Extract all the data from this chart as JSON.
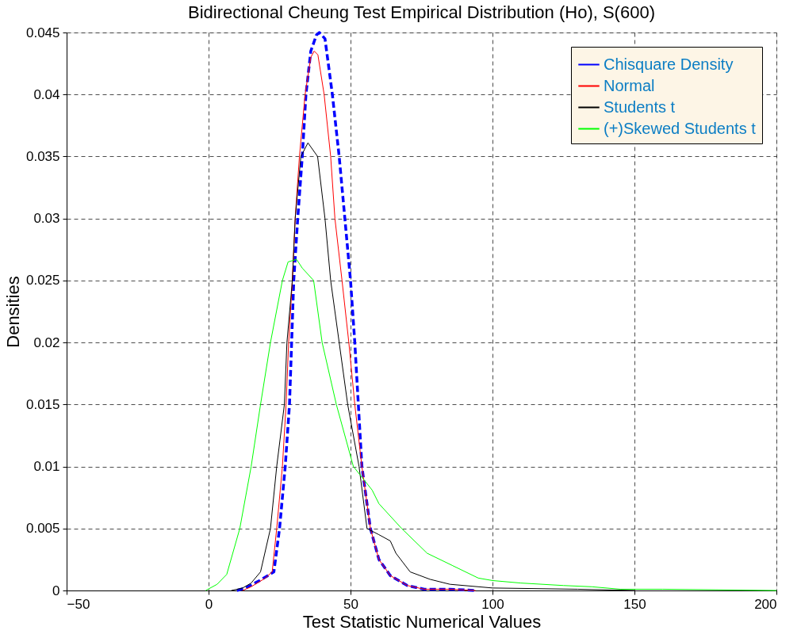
{
  "chart_data": {
    "type": "line",
    "title": "Bidirectional Cheung Test Empirical Distribution (Ho), S(600)",
    "xlabel": "Test Statistic Numerical Values",
    "ylabel": "Densities",
    "xlim": [
      -50,
      200
    ],
    "xticks": [
      -50,
      0,
      50,
      100,
      150,
      200
    ],
    "ylim": [
      0,
      0.045
    ],
    "yticks": [
      0,
      0.005,
      0.01,
      0.015,
      0.02,
      0.025,
      0.03,
      0.035,
      0.04,
      0.045
    ],
    "grid": true,
    "legend": "top right",
    "marker": "none",
    "series": [
      {
        "name": "Chisquare Density",
        "color": "#0000ff",
        "line_style": "dashed",
        "x": [
          10,
          13,
          18,
          23,
          25,
          27,
          28.5,
          30,
          31.4,
          33,
          34.3,
          36,
          38,
          39,
          41,
          43.6,
          46,
          48,
          50,
          51.5,
          54,
          57,
          60,
          64,
          70,
          76,
          85,
          94
        ],
        "values": [
          0,
          0.0002,
          0.0008,
          0.0015,
          0.005,
          0.01,
          0.015,
          0.025,
          0.03,
          0.035,
          0.04,
          0.0435,
          0.0448,
          0.045,
          0.0445,
          0.04,
          0.035,
          0.03,
          0.025,
          0.02,
          0.01,
          0.005,
          0.0025,
          0.0012,
          0.0004,
          0.0001,
          0.0001,
          0
        ]
      },
      {
        "name": "Normal",
        "color": "#ff0000",
        "line_style": "solid",
        "x": [
          12,
          15,
          20,
          22.4,
          24,
          26,
          27.3,
          28.2,
          29.5,
          30.5,
          32,
          34,
          36,
          37.2,
          38.5,
          40.7,
          43,
          44.5,
          47,
          49.4,
          51.5,
          54,
          57,
          60,
          64,
          70,
          76,
          85,
          94
        ],
        "values": [
          0,
          0.0003,
          0.001,
          0.0015,
          0.005,
          0.01,
          0.015,
          0.02,
          0.025,
          0.03,
          0.035,
          0.04,
          0.043,
          0.0435,
          0.0432,
          0.04,
          0.035,
          0.03,
          0.025,
          0.02,
          0.015,
          0.01,
          0.005,
          0.0025,
          0.0012,
          0.0004,
          0.0001,
          0.0001,
          0
        ]
      },
      {
        "name": "Students t",
        "color": "#000000",
        "line_style": "solid",
        "x": [
          8,
          12,
          15,
          18.3,
          21.8,
          24,
          26.7,
          27.6,
          29.5,
          30.5,
          32.5,
          35,
          38.4,
          41,
          43,
          46,
          49,
          53,
          55.8,
          60,
          64,
          66,
          71,
          78,
          85,
          100,
          130,
          150
        ],
        "values": [
          0,
          0.0002,
          0.0006,
          0.0015,
          0.005,
          0.01,
          0.015,
          0.02,
          0.025,
          0.03,
          0.035,
          0.0361,
          0.035,
          0.03,
          0.025,
          0.02,
          0.015,
          0.01,
          0.005,
          0.0045,
          0.004,
          0.003,
          0.0015,
          0.0009,
          0.0005,
          0.0002,
          0.0001,
          0
        ]
      },
      {
        "name": "(+)Skewed Students t",
        "color": "#00ff00",
        "line_style": "solid",
        "x": [
          -1,
          3,
          6.4,
          11,
          15,
          18.3,
          21.8,
          26,
          28,
          31,
          33,
          37,
          40,
          45,
          51,
          57.6,
          60,
          68,
          77,
          86,
          95,
          100,
          110,
          125,
          135,
          145,
          160,
          200
        ],
        "values": [
          0,
          0.0005,
          0.0013,
          0.005,
          0.01,
          0.015,
          0.02,
          0.025,
          0.0265,
          0.0267,
          0.026,
          0.025,
          0.02,
          0.015,
          0.01,
          0.0081,
          0.007,
          0.005,
          0.003,
          0.002,
          0.001,
          0.0008,
          0.0006,
          0.0004,
          0.0003,
          0.0001,
          0.0001,
          0
        ]
      }
    ]
  }
}
